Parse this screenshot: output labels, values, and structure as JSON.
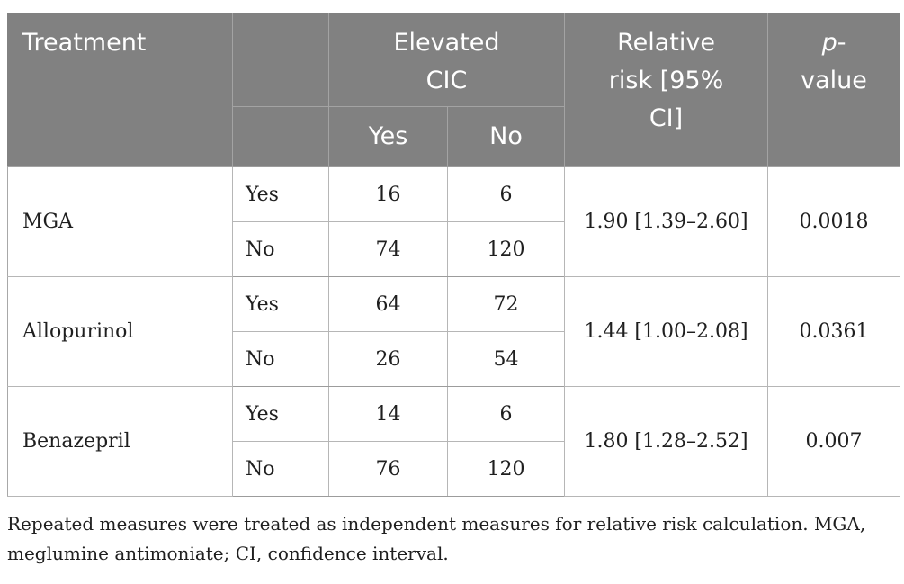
{
  "table": {
    "header": {
      "treatment": "Treatment",
      "elevated_cic_lines": [
        "Elevated",
        "CIC"
      ],
      "sub_yes": "Yes",
      "sub_no": "No",
      "relative_risk_lines": [
        "Relative",
        "risk [95%",
        "CI]"
      ],
      "p_letter": "p",
      "p_hyphen": "-",
      "p_word": "value"
    },
    "groups": [
      {
        "treatment": "MGA",
        "rows": [
          {
            "label": "Yes",
            "elevated_yes": "16",
            "elevated_no": "6"
          },
          {
            "label": "No",
            "elevated_yes": "74",
            "elevated_no": "120"
          }
        ],
        "relative_risk": "1.90 [1.39–2.60]",
        "p_value": "0.0018"
      },
      {
        "treatment": "Allopurinol",
        "rows": [
          {
            "label": "Yes",
            "elevated_yes": "64",
            "elevated_no": "72"
          },
          {
            "label": "No",
            "elevated_yes": "26",
            "elevated_no": "54"
          }
        ],
        "relative_risk": "1.44 [1.00–2.08]",
        "p_value": "0.0361"
      },
      {
        "treatment": "Benazepril",
        "rows": [
          {
            "label": "Yes",
            "elevated_yes": "14",
            "elevated_no": "6"
          },
          {
            "label": "No",
            "elevated_yes": "76",
            "elevated_no": "120"
          }
        ],
        "relative_risk": "1.80 [1.28–2.52]",
        "p_value": "0.007"
      }
    ],
    "colors": {
      "header_bg": "#818181",
      "header_text": "#ffffff",
      "body_text": "#1f1f1f",
      "border_inner": "#b6b6b6",
      "border_group": "#9c9c9c"
    }
  },
  "footnote": {
    "lines": [
      "Repeated measures were treated as independent measures for relative risk calculation. MGA,",
      "meglumine antimoniate; CI, confidence interval."
    ]
  }
}
